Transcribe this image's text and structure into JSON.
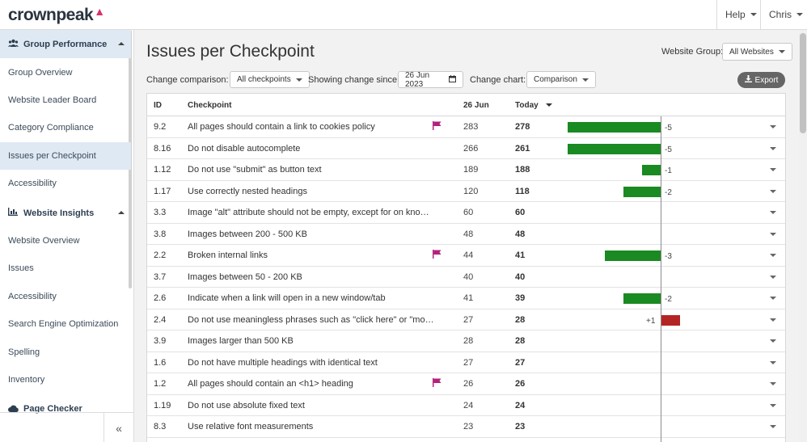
{
  "app": {
    "logo_text": "crownpeak"
  },
  "topnav": {
    "help_label": "Help",
    "user_label": "Chris"
  },
  "sidebar": {
    "sections": [
      {
        "label": "Group Performance",
        "icon": "users-icon"
      },
      {
        "label": "Website Insights",
        "icon": "bar-chart-icon"
      },
      {
        "label": "Page Checker",
        "icon": "cloud-icon"
      }
    ],
    "group_items": [
      "Group Overview",
      "Website Leader Board",
      "Category Compliance",
      "Issues per Checkpoint",
      "Accessibility"
    ],
    "insight_items": [
      "Website Overview",
      "Issues",
      "Accessibility",
      "Search Engine Optimization",
      "Spelling",
      "Inventory"
    ],
    "collapse_glyph": "«"
  },
  "page": {
    "title": "Issues per Checkpoint",
    "website_group_label": "Website Group:",
    "website_group_value": "All Websites",
    "change_comparison_label": "Change comparison:",
    "change_comparison_value": "All checkpoints",
    "showing_since_label": "Showing change since:",
    "showing_since_value": "26 Jun 2023",
    "change_chart_label": "Change chart:",
    "change_chart_value": "Comparison",
    "export_label": "Export"
  },
  "table": {
    "headers": {
      "id": "ID",
      "checkpoint": "Checkpoint",
      "prev": "26 Jun",
      "today": "Today"
    },
    "colors": {
      "decrease": "#1a8a22",
      "increase": "#b52424",
      "flag": "#b3207a"
    },
    "rows": [
      {
        "id": "9.2",
        "name": "All pages should contain a link to cookies policy",
        "flag": true,
        "prev": "283",
        "today": "278",
        "delta": -5,
        "delta_text": "-5"
      },
      {
        "id": "8.16",
        "name": "Do not disable autocomplete",
        "flag": false,
        "prev": "266",
        "today": "261",
        "delta": -5,
        "delta_text": "-5"
      },
      {
        "id": "1.12",
        "name": "Do not use \"submit\" as button text",
        "flag": false,
        "prev": "189",
        "today": "188",
        "delta": -1,
        "delta_text": "-1"
      },
      {
        "id": "1.17",
        "name": "Use correctly nested headings",
        "flag": false,
        "prev": "120",
        "today": "118",
        "delta": -2,
        "delta_text": "-2"
      },
      {
        "id": "3.3",
        "name": "Image \"alt\" attribute should not be empty, except for on known, d...",
        "flag": false,
        "prev": "60",
        "today": "60",
        "delta": 0,
        "delta_text": ""
      },
      {
        "id": "3.8",
        "name": "Images between 200 - 500 KB",
        "flag": false,
        "prev": "48",
        "today": "48",
        "delta": 0,
        "delta_text": ""
      },
      {
        "id": "2.2",
        "name": "Broken internal links",
        "flag": true,
        "prev": "44",
        "today": "41",
        "delta": -3,
        "delta_text": "-3"
      },
      {
        "id": "3.7",
        "name": "Images between 50 - 200 KB",
        "flag": false,
        "prev": "40",
        "today": "40",
        "delta": 0,
        "delta_text": ""
      },
      {
        "id": "2.6",
        "name": "Indicate when a link will open in a new window/tab",
        "flag": false,
        "prev": "41",
        "today": "39",
        "delta": -2,
        "delta_text": "-2"
      },
      {
        "id": "2.4",
        "name": "Do not use meaningless phrases such as \"click here\" or \"more\" a...",
        "flag": false,
        "prev": "27",
        "today": "28",
        "delta": 1,
        "delta_text": "+1"
      },
      {
        "id": "3.9",
        "name": "Images larger than 500 KB",
        "flag": false,
        "prev": "28",
        "today": "28",
        "delta": 0,
        "delta_text": ""
      },
      {
        "id": "1.6",
        "name": "Do not have multiple headings with identical text",
        "flag": false,
        "prev": "27",
        "today": "27",
        "delta": 0,
        "delta_text": ""
      },
      {
        "id": "1.2",
        "name": "All pages should contain an <h1> heading",
        "flag": true,
        "prev": "26",
        "today": "26",
        "delta": 0,
        "delta_text": ""
      },
      {
        "id": "1.19",
        "name": "Do not use absolute fixed text",
        "flag": false,
        "prev": "24",
        "today": "24",
        "delta": 0,
        "delta_text": ""
      },
      {
        "id": "8.3",
        "name": "Use relative font measurements",
        "flag": false,
        "prev": "23",
        "today": "23",
        "delta": 0,
        "delta_text": ""
      }
    ]
  }
}
